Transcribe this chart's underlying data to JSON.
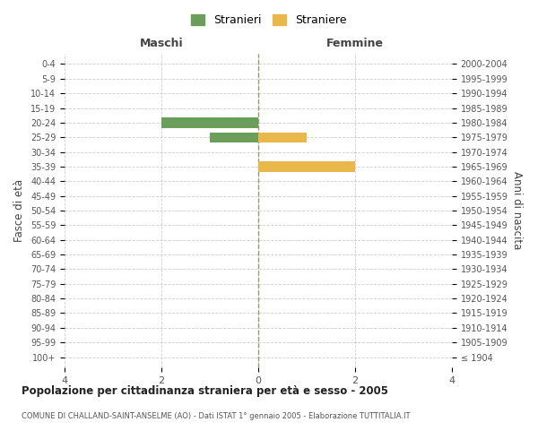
{
  "age_groups": [
    "100+",
    "95-99",
    "90-94",
    "85-89",
    "80-84",
    "75-79",
    "70-74",
    "65-69",
    "60-64",
    "55-59",
    "50-54",
    "45-49",
    "40-44",
    "35-39",
    "30-34",
    "25-29",
    "20-24",
    "15-19",
    "10-14",
    "5-9",
    "0-4"
  ],
  "birth_years": [
    "≤ 1904",
    "1905-1909",
    "1910-1914",
    "1915-1919",
    "1920-1924",
    "1925-1929",
    "1930-1934",
    "1935-1939",
    "1940-1944",
    "1945-1949",
    "1950-1954",
    "1955-1959",
    "1960-1964",
    "1965-1969",
    "1970-1974",
    "1975-1979",
    "1980-1984",
    "1985-1989",
    "1990-1994",
    "1995-1999",
    "2000-2004"
  ],
  "males": [
    0,
    0,
    0,
    0,
    0,
    0,
    0,
    0,
    0,
    0,
    0,
    0,
    0,
    0,
    0,
    1,
    2,
    0,
    0,
    0,
    0
  ],
  "females": [
    0,
    0,
    0,
    0,
    0,
    0,
    0,
    0,
    0,
    0,
    0,
    0,
    0,
    2,
    0,
    1,
    0,
    0,
    0,
    0,
    0
  ],
  "male_color": "#6a9e5a",
  "female_color": "#e8b84b",
  "xlim": [
    -4,
    4
  ],
  "xticks": [
    -4,
    -2,
    0,
    2,
    4
  ],
  "title_main": "Popolazione per cittadinanza straniera per età e sesso - 2005",
  "subtitle": "COMUNE DI CHALLAND-SAINT-ANSELME (AO) - Dati ISTAT 1° gennaio 2005 - Elaborazione TUTTITALIA.IT",
  "legend_male": "Stranieri",
  "legend_female": "Straniere",
  "label_maschi": "Maschi",
  "label_femmine": "Femmine",
  "ylabel_left": "Fasce di età",
  "ylabel_right": "Anni di nascita",
  "background_color": "#ffffff",
  "grid_color": "#cccccc",
  "bar_height": 0.7
}
